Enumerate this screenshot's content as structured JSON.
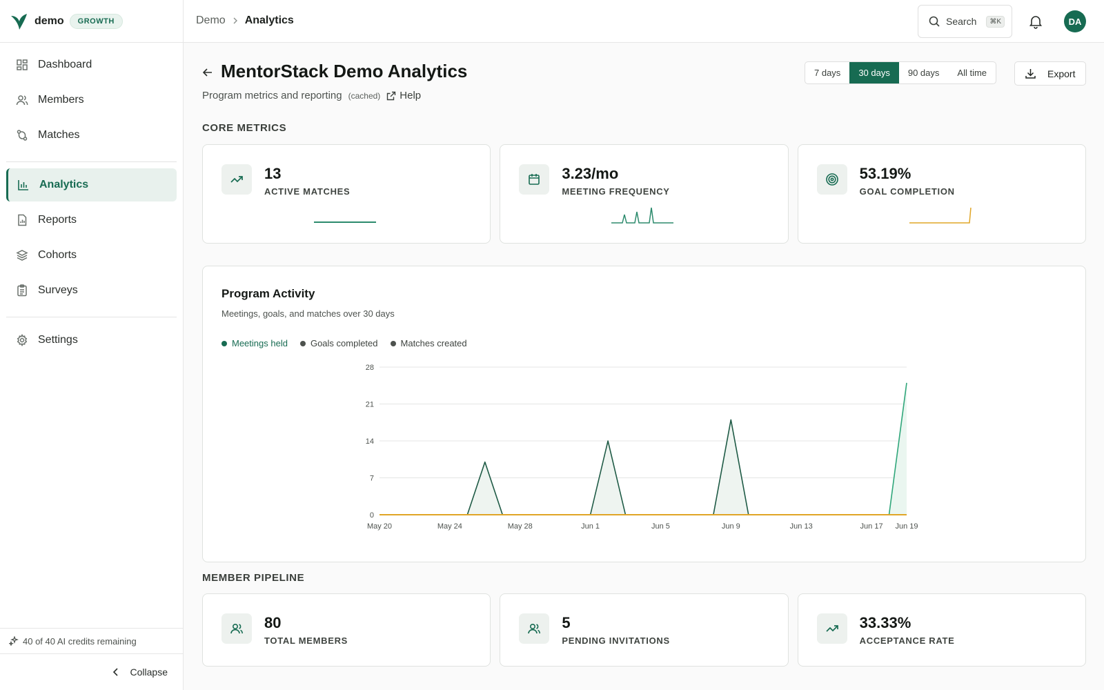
{
  "brand": {
    "name": "demo",
    "plan": "GROWTH"
  },
  "sidebar": {
    "items": [
      {
        "label": "Dashboard",
        "icon": "dashboard-icon"
      },
      {
        "label": "Members",
        "icon": "members-icon"
      },
      {
        "label": "Matches",
        "icon": "matches-icon"
      },
      {
        "label": "Analytics",
        "icon": "analytics-icon",
        "active": true
      },
      {
        "label": "Reports",
        "icon": "reports-icon"
      },
      {
        "label": "Cohorts",
        "icon": "cohorts-icon"
      },
      {
        "label": "Surveys",
        "icon": "surveys-icon"
      },
      {
        "label": "Settings",
        "icon": "settings-icon"
      }
    ],
    "credits": "40 of 40 AI credits remaining",
    "collapse_label": "Collapse"
  },
  "header": {
    "breadcrumb_root": "Demo",
    "breadcrumb_current": "Analytics",
    "search_label": "Search",
    "search_shortcut": "⌘K",
    "avatar_initials": "DA"
  },
  "page": {
    "title": "MentorStack Demo Analytics",
    "subtitle": "Program metrics and reporting",
    "cached_label": "(cached)",
    "help_label": "Help",
    "ranges": [
      "7 days",
      "30 days",
      "90 days",
      "All time"
    ],
    "active_range": "30 days",
    "export_label": "Export"
  },
  "core_metrics": {
    "title": "CORE METRICS",
    "cards": [
      {
        "value": "13",
        "label": "ACTIVE MATCHES",
        "icon": "trending-up-icon"
      },
      {
        "value": "3.23/mo",
        "label": "MEETING FREQUENCY",
        "icon": "calendar-icon"
      },
      {
        "value": "53.19%",
        "label": "GOAL COMPLETION",
        "icon": "target-icon"
      }
    ]
  },
  "activity": {
    "title": "Program Activity",
    "subtitle": "Meetings, goals, and matches over 30 days",
    "legend": [
      {
        "label": "Meetings held",
        "active": true
      },
      {
        "label": "Goals completed",
        "active": false
      },
      {
        "label": "Matches created",
        "active": false
      }
    ]
  },
  "pipeline": {
    "title": "MEMBER PIPELINE",
    "cards": [
      {
        "value": "80",
        "label": "TOTAL MEMBERS",
        "icon": "members-icon"
      },
      {
        "value": "5",
        "label": "PENDING INVITATIONS",
        "icon": "members-icon"
      },
      {
        "value": "33.33%",
        "label": "ACCEPTANCE RATE",
        "icon": "trending-up-icon"
      }
    ]
  },
  "colors": {
    "accent": "#176b52",
    "meetings_line": "#1e5a45",
    "goals_line": "#e0a526",
    "matches_line": "#2fa67a",
    "area_fill": "#eef4f0"
  },
  "chart_data": {
    "type": "line",
    "x": [
      "May 20",
      "May 21",
      "May 22",
      "May 23",
      "May 24",
      "May 25",
      "May 26",
      "May 27",
      "May 28",
      "May 29",
      "May 30",
      "May 31",
      "Jun 1",
      "Jun 2",
      "Jun 3",
      "Jun 4",
      "Jun 5",
      "Jun 6",
      "Jun 7",
      "Jun 8",
      "Jun 9",
      "Jun 10",
      "Jun 11",
      "Jun 12",
      "Jun 13",
      "Jun 14",
      "Jun 15",
      "Jun 16",
      "Jun 17",
      "Jun 18",
      "Jun 19"
    ],
    "x_ticks": [
      "May 20",
      "May 24",
      "May 28",
      "Jun 1",
      "Jun 5",
      "Jun 9",
      "Jun 13",
      "Jun 17",
      "Jun 19"
    ],
    "y_ticks": [
      0,
      7,
      14,
      21,
      28
    ],
    "ylim": [
      0,
      28
    ],
    "series": [
      {
        "name": "Meetings held",
        "values": [
          0,
          0,
          0,
          0,
          0,
          0,
          10,
          0,
          0,
          0,
          0,
          0,
          0,
          14,
          0,
          0,
          0,
          0,
          0,
          0,
          18,
          0,
          0,
          0,
          0,
          0,
          0,
          0,
          0,
          0,
          0
        ]
      },
      {
        "name": "Goals completed",
        "values": [
          0,
          0,
          0,
          0,
          0,
          0,
          0,
          0,
          0,
          0,
          0,
          0,
          0,
          0,
          0,
          0,
          0,
          0,
          0,
          0,
          0,
          0,
          0,
          0,
          0,
          0,
          0,
          0,
          0,
          0,
          0
        ]
      },
      {
        "name": "Matches created",
        "values": [
          0,
          0,
          0,
          0,
          0,
          0,
          0,
          0,
          0,
          0,
          0,
          0,
          0,
          0,
          0,
          0,
          0,
          0,
          0,
          0,
          0,
          0,
          0,
          0,
          0,
          0,
          0,
          0,
          0,
          0,
          25
        ]
      }
    ],
    "grid": true,
    "legend": "top-left"
  }
}
